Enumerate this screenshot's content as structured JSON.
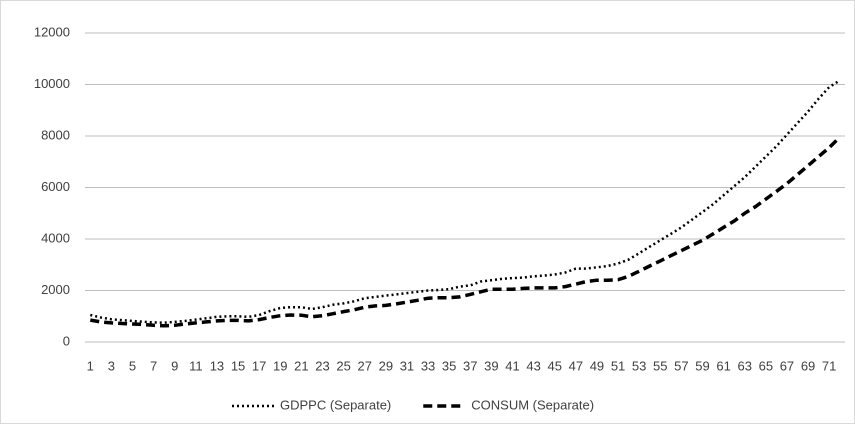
{
  "chart_data": {
    "type": "line",
    "categories": [
      1,
      null,
      3,
      null,
      5,
      null,
      7,
      null,
      9,
      null,
      11,
      null,
      13,
      null,
      15,
      null,
      17,
      null,
      19,
      null,
      21,
      null,
      23,
      null,
      25,
      null,
      27,
      null,
      29,
      null,
      31,
      null,
      33,
      null,
      35,
      null,
      37,
      null,
      39,
      null,
      41,
      null,
      43,
      null,
      45,
      null,
      47,
      null,
      49,
      null,
      51,
      null,
      53,
      null,
      55,
      null,
      57,
      null,
      59,
      null,
      61,
      null,
      63,
      null,
      65,
      null,
      67,
      null,
      69,
      null,
      71,
      null
    ],
    "series": [
      {
        "name": "GDPPC (Separate)",
        "color": "#000000",
        "style": "dotted",
        "values": [
          1050,
          950,
          880,
          850,
          820,
          790,
          760,
          750,
          780,
          820,
          870,
          920,
          980,
          1000,
          1000,
          980,
          1050,
          1200,
          1320,
          1350,
          1350,
          1280,
          1350,
          1450,
          1500,
          1580,
          1700,
          1750,
          1800,
          1850,
          1900,
          1950,
          2000,
          2020,
          2050,
          2150,
          2200,
          2350,
          2400,
          2450,
          2480,
          2500,
          2550,
          2580,
          2620,
          2700,
          2850,
          2850,
          2900,
          2950,
          3050,
          3200,
          3450,
          3700,
          3950,
          4200,
          4450,
          4750,
          5050,
          5350,
          5700,
          6050,
          6400,
          6800,
          7200,
          7600,
          8050,
          8500,
          8950,
          9450,
          9900,
          10150
        ]
      },
      {
        "name": "CONSUM (Separate)",
        "color": "#000000",
        "style": "dashed",
        "values": [
          850,
          780,
          740,
          720,
          700,
          680,
          650,
          630,
          650,
          700,
          740,
          780,
          820,
          840,
          840,
          820,
          870,
          950,
          1020,
          1050,
          1040,
          980,
          1020,
          1100,
          1180,
          1250,
          1350,
          1400,
          1420,
          1480,
          1550,
          1620,
          1700,
          1720,
          1720,
          1750,
          1850,
          1950,
          2050,
          2050,
          2050,
          2080,
          2100,
          2100,
          2100,
          2150,
          2250,
          2350,
          2400,
          2400,
          2420,
          2550,
          2750,
          2950,
          3150,
          3350,
          3550,
          3750,
          3950,
          4200,
          4450,
          4700,
          5000,
          5250,
          5550,
          5850,
          6150,
          6500,
          6850,
          7200,
          7550,
          7950
        ]
      }
    ],
    "ylim": [
      0,
      12000
    ],
    "yticks": [
      0,
      2000,
      4000,
      6000,
      8000,
      10000,
      12000
    ],
    "grid": true,
    "legend": "bottom"
  }
}
